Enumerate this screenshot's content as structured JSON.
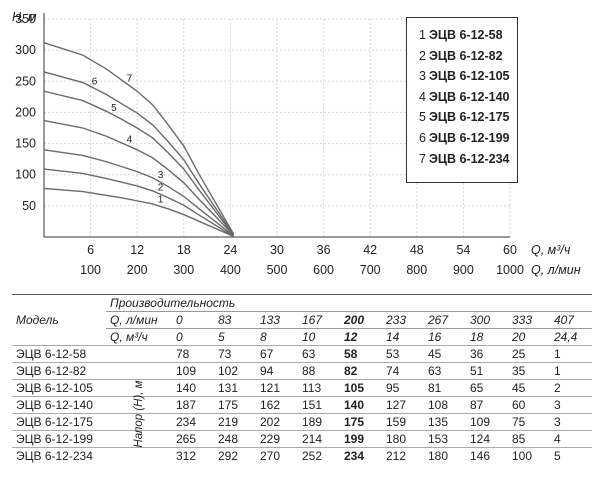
{
  "chart_data": {
    "type": "line",
    "ylabel": "H, м",
    "xlabel": "Q, м³/ч",
    "xlabel2": "Q, л/мин",
    "x_ticks": [
      6,
      12,
      18,
      24,
      30,
      36,
      42,
      48,
      54,
      60
    ],
    "x2_ticks": [
      100,
      200,
      300,
      400,
      500,
      600,
      700,
      800,
      900,
      1000
    ],
    "y_ticks": [
      50,
      100,
      150,
      200,
      250,
      300,
      350
    ],
    "xlim": [
      0,
      60
    ],
    "ylim": [
      0,
      350
    ],
    "grid": true,
    "legend_position": "top-right",
    "series": [
      {
        "name": "ЭЦВ 6-12-58",
        "label": "1",
        "x": [
          0,
          5,
          8,
          10,
          12,
          14,
          16,
          18,
          20,
          24.4
        ],
        "y": [
          78,
          73,
          67,
          63,
          58,
          53,
          45,
          36,
          25,
          1
        ]
      },
      {
        "name": "ЭЦВ 6-12-82",
        "label": "2",
        "x": [
          0,
          5,
          8,
          10,
          12,
          14,
          16,
          18,
          20,
          24.4
        ],
        "y": [
          109,
          102,
          94,
          88,
          82,
          74,
          63,
          51,
          35,
          1
        ]
      },
      {
        "name": "ЭЦВ 6-12-105",
        "label": "3",
        "x": [
          0,
          5,
          8,
          10,
          12,
          14,
          16,
          18,
          20,
          24.4
        ],
        "y": [
          140,
          131,
          121,
          113,
          105,
          95,
          81,
          65,
          45,
          2
        ]
      },
      {
        "name": "ЭЦВ 6-12-140",
        "label": "4",
        "x": [
          0,
          5,
          8,
          10,
          12,
          14,
          16,
          18,
          20,
          24.4
        ],
        "y": [
          187,
          175,
          162,
          151,
          140,
          127,
          108,
          87,
          60,
          3
        ]
      },
      {
        "name": "ЭЦВ 6-12-175",
        "label": "5",
        "x": [
          0,
          5,
          8,
          10,
          12,
          14,
          16,
          18,
          20,
          24.4
        ],
        "y": [
          234,
          219,
          202,
          189,
          175,
          159,
          135,
          109,
          75,
          3
        ]
      },
      {
        "name": "ЭЦВ 6-12-199",
        "label": "6",
        "x": [
          0,
          5,
          8,
          10,
          12,
          14,
          16,
          18,
          20,
          24.4
        ],
        "y": [
          265,
          248,
          229,
          214,
          199,
          180,
          153,
          124,
          85,
          4
        ]
      },
      {
        "name": "ЭЦВ 6-12-234",
        "label": "7",
        "x": [
          0,
          5,
          8,
          10,
          12,
          14,
          16,
          18,
          20,
          24.4
        ],
        "y": [
          312,
          292,
          270,
          252,
          234,
          212,
          180,
          146,
          100,
          5
        ]
      }
    ]
  },
  "legend": [
    {
      "num": "1",
      "name": "ЭЦВ 6-12-58"
    },
    {
      "num": "2",
      "name": "ЭЦВ 6-12-82"
    },
    {
      "num": "3",
      "name": "ЭЦВ 6-12-105"
    },
    {
      "num": "4",
      "name": "ЭЦВ 6-12-140"
    },
    {
      "num": "5",
      "name": "ЭЦВ 6-12-175"
    },
    {
      "num": "6",
      "name": "ЭЦВ 6-12-199"
    },
    {
      "num": "7",
      "name": "ЭЦВ 6-12-234"
    }
  ],
  "table": {
    "model_header": "Модель",
    "capacity_header": "Производительность",
    "q_lmin_label": "Q, л/мин",
    "q_m3h_label": "Q, м³/ч",
    "head_label": "Напор (Н), м",
    "q_lmin": [
      "0",
      "83",
      "133",
      "167",
      "200",
      "233",
      "267",
      "300",
      "333",
      "407"
    ],
    "q_m3h": [
      "0",
      "5",
      "8",
      "10",
      "12",
      "14",
      "16",
      "18",
      "20",
      "24,4"
    ],
    "highlight_col": 4,
    "rows": [
      {
        "model": "ЭЦВ 6-12-58",
        "values": [
          "78",
          "73",
          "67",
          "63",
          "58",
          "53",
          "45",
          "36",
          "25",
          "1"
        ]
      },
      {
        "model": "ЭЦВ 6-12-82",
        "values": [
          "109",
          "102",
          "94",
          "88",
          "82",
          "74",
          "63",
          "51",
          "35",
          "1"
        ]
      },
      {
        "model": "ЭЦВ 6-12-105",
        "values": [
          "140",
          "131",
          "121",
          "113",
          "105",
          "95",
          "81",
          "65",
          "45",
          "2"
        ]
      },
      {
        "model": "ЭЦВ 6-12-140",
        "values": [
          "187",
          "175",
          "162",
          "151",
          "140",
          "127",
          "108",
          "87",
          "60",
          "3"
        ]
      },
      {
        "model": "ЭЦВ 6-12-175",
        "values": [
          "234",
          "219",
          "202",
          "189",
          "175",
          "159",
          "135",
          "109",
          "75",
          "3"
        ]
      },
      {
        "model": "ЭЦВ 6-12-199",
        "values": [
          "265",
          "248",
          "229",
          "214",
          "199",
          "180",
          "153",
          "124",
          "85",
          "4"
        ]
      },
      {
        "model": "ЭЦВ 6-12-234",
        "values": [
          "312",
          "292",
          "270",
          "252",
          "234",
          "212",
          "180",
          "146",
          "100",
          "5"
        ]
      }
    ]
  }
}
